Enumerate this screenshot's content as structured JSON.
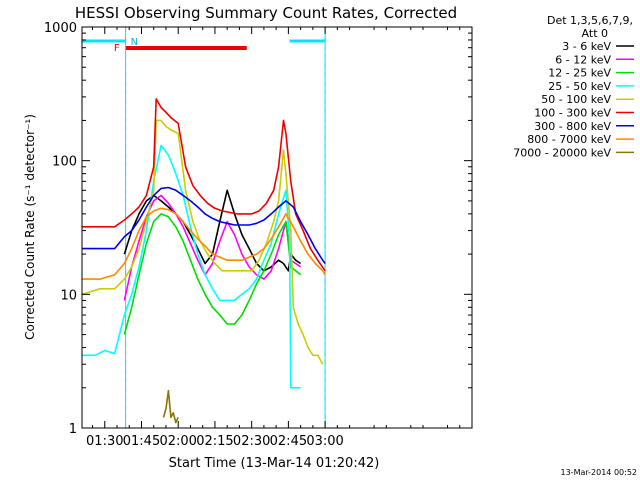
{
  "chart_data": {
    "type": "line",
    "title": "HESSI Observing Summary Count Rates, Corrected",
    "xlabel": "Start Time (13-Mar-14 01:20:42)",
    "ylabel": "Corrected Count Rate (s⁻¹ detector⁻¹)",
    "ylog": true,
    "ylim": [
      1,
      1000
    ],
    "xlim": [
      20.7,
      180
    ],
    "x_ticks": [
      {
        "v": 30,
        "label": "01:30"
      },
      {
        "v": 45,
        "label": "01:45"
      },
      {
        "v": 60,
        "label": "02:00"
      },
      {
        "v": 75,
        "label": "02:15"
      },
      {
        "v": 90,
        "label": "02:30"
      },
      {
        "v": 105,
        "label": "02:45"
      },
      {
        "v": 120,
        "label": "03:00"
      }
    ],
    "y_ticks": [
      {
        "v": 1,
        "label": "1"
      },
      {
        "v": 10,
        "label": "10"
      },
      {
        "v": 100,
        "label": "100"
      },
      {
        "v": 1000,
        "label": "1000"
      }
    ],
    "legend": {
      "header": [
        "Det 1,3,5,6,7,9,",
        "Att 0"
      ],
      "placement": "right"
    },
    "flags": {
      "night": [
        {
          "x0": 20.7,
          "x1": 38.5
        },
        {
          "x0": 105.5,
          "x1": 120
        }
      ],
      "saa_label": "N",
      "flare": {
        "x0": 38.5,
        "x1": 88,
        "label": "F"
      }
    },
    "dashed_markers": [
      38.5,
      120
    ],
    "series": [
      {
        "name": "3 - 6 keV",
        "color": "#000000",
        "x": [
          38,
          41,
          44,
          47,
          50,
          53,
          56,
          59,
          62,
          65,
          68,
          71,
          74,
          77,
          80,
          83,
          86,
          89,
          92,
          95,
          98,
          101,
          103,
          105,
          106,
          108,
          110
        ],
        "y": [
          20,
          30,
          40,
          50,
          55,
          50,
          45,
          40,
          35,
          28,
          22,
          17,
          20,
          35,
          60,
          40,
          28,
          22,
          17,
          15,
          16,
          18,
          17,
          15,
          20,
          18,
          17
        ]
      },
      {
        "name": "6 - 12 keV",
        "color": "#ff00ff",
        "x": [
          38,
          41,
          44,
          47,
          50,
          53,
          56,
          59,
          62,
          65,
          68,
          71,
          74,
          77,
          80,
          83,
          86,
          89,
          92,
          95,
          98,
          101,
          104,
          106,
          108,
          110
        ],
        "y": [
          9,
          16,
          25,
          38,
          50,
          55,
          48,
          40,
          32,
          24,
          18,
          14,
          17,
          25,
          35,
          28,
          20,
          16,
          14,
          13,
          15,
          22,
          35,
          18,
          17,
          16
        ]
      },
      {
        "name": "12 - 25 keV",
        "color": "#00dd00",
        "x": [
          38,
          41,
          44,
          47,
          50,
          53,
          56,
          59,
          62,
          65,
          68,
          71,
          74,
          77,
          80,
          83,
          86,
          89,
          92,
          95,
          98,
          101,
          104,
          106,
          108,
          110
        ],
        "y": [
          5,
          8,
          14,
          24,
          35,
          40,
          38,
          32,
          25,
          18,
          13,
          10,
          8,
          7,
          6,
          6,
          7,
          9,
          12,
          15,
          20,
          28,
          35,
          16,
          15,
          14
        ]
      },
      {
        "name": "25 - 50 keV",
        "color": "#00ffff",
        "x": [
          20.7,
          26,
          30,
          34,
          36,
          38,
          41,
          44,
          47,
          50,
          53,
          56,
          59,
          62,
          65,
          68,
          71,
          74,
          77,
          80,
          83,
          86,
          89,
          92,
          95,
          98,
          101,
          104,
          105.5,
          106,
          108,
          110
        ],
        "y": [
          3.5,
          3.5,
          3.8,
          3.6,
          5,
          7,
          10,
          16,
          30,
          70,
          130,
          110,
          80,
          55,
          32,
          20,
          14,
          11,
          9,
          9,
          9,
          10,
          11,
          13,
          18,
          24,
          40,
          60,
          25,
          2,
          2,
          2
        ]
      },
      {
        "name": "50 - 100 keV",
        "color": "#cccc00",
        "x": [
          20.7,
          28,
          34,
          38,
          41,
          44,
          47,
          50,
          51,
          53,
          55,
          57,
          60,
          63,
          66,
          69,
          72,
          75,
          78,
          81,
          84,
          87,
          90,
          93,
          96,
          99,
          101,
          103,
          104,
          106,
          107,
          109,
          111,
          113,
          115,
          117,
          119
        ],
        "y": [
          10,
          11,
          11,
          13,
          16,
          22,
          35,
          60,
          200,
          200,
          180,
          170,
          160,
          60,
          35,
          25,
          20,
          17,
          15,
          15,
          15,
          15,
          15,
          18,
          24,
          35,
          50,
          120,
          80,
          30,
          8,
          6,
          5,
          4,
          3.5,
          3.5,
          3
        ]
      },
      {
        "name": "100 - 300 keV",
        "color": "#ee0000",
        "x": [
          20.7,
          28,
          34,
          38,
          41,
          44,
          47,
          50,
          51,
          53,
          55,
          57,
          60,
          63,
          66,
          69,
          72,
          75,
          78,
          81,
          84,
          87,
          90,
          93,
          96,
          99,
          101,
          103,
          104,
          106,
          108,
          111,
          114,
          117,
          120
        ],
        "y": [
          32,
          32,
          32,
          36,
          40,
          45,
          55,
          90,
          290,
          250,
          230,
          210,
          190,
          90,
          65,
          55,
          48,
          44,
          42,
          41,
          40,
          40,
          40,
          42,
          48,
          60,
          90,
          200,
          160,
          70,
          40,
          30,
          22,
          18,
          15
        ]
      },
      {
        "name": "300 - 800 keV",
        "color": "#0000ee",
        "x": [
          20.7,
          28,
          34,
          38,
          41,
          44,
          47,
          50,
          53,
          56,
          59,
          62,
          65,
          68,
          71,
          74,
          77,
          80,
          83,
          86,
          89,
          92,
          95,
          98,
          101,
          104,
          107,
          110,
          113,
          116,
          119,
          120
        ],
        "y": [
          22,
          22,
          22,
          27,
          30,
          36,
          45,
          55,
          62,
          63,
          60,
          55,
          50,
          45,
          40,
          37,
          35,
          34,
          33,
          33,
          33,
          34,
          36,
          40,
          45,
          50,
          45,
          35,
          28,
          22,
          18,
          17
        ]
      },
      {
        "name": "800 - 7000 keV",
        "color": "#ff8800",
        "x": [
          20.7,
          28,
          34,
          38,
          41,
          44,
          47,
          50,
          53,
          56,
          59,
          62,
          65,
          68,
          71,
          74,
          77,
          80,
          83,
          86,
          89,
          92,
          95,
          98,
          101,
          104,
          107,
          110,
          113,
          116,
          119,
          120
        ],
        "y": [
          13,
          13,
          14,
          17,
          22,
          30,
          38,
          42,
          44,
          43,
          40,
          35,
          30,
          26,
          23,
          20,
          19,
          18,
          18,
          18,
          19,
          20,
          22,
          26,
          32,
          40,
          32,
          25,
          20,
          17,
          15,
          14
        ]
      },
      {
        "name": "7000 - 20000 keV",
        "color": "#8b7500",
        "x": [
          54,
          55,
          56,
          57,
          58,
          59,
          60
        ],
        "y": [
          1.2,
          1.4,
          1.9,
          1.2,
          1.3,
          1.1,
          1.2
        ]
      }
    ]
  },
  "footer": {
    "date_stamp": "13-Mar-2014 00:52"
  }
}
